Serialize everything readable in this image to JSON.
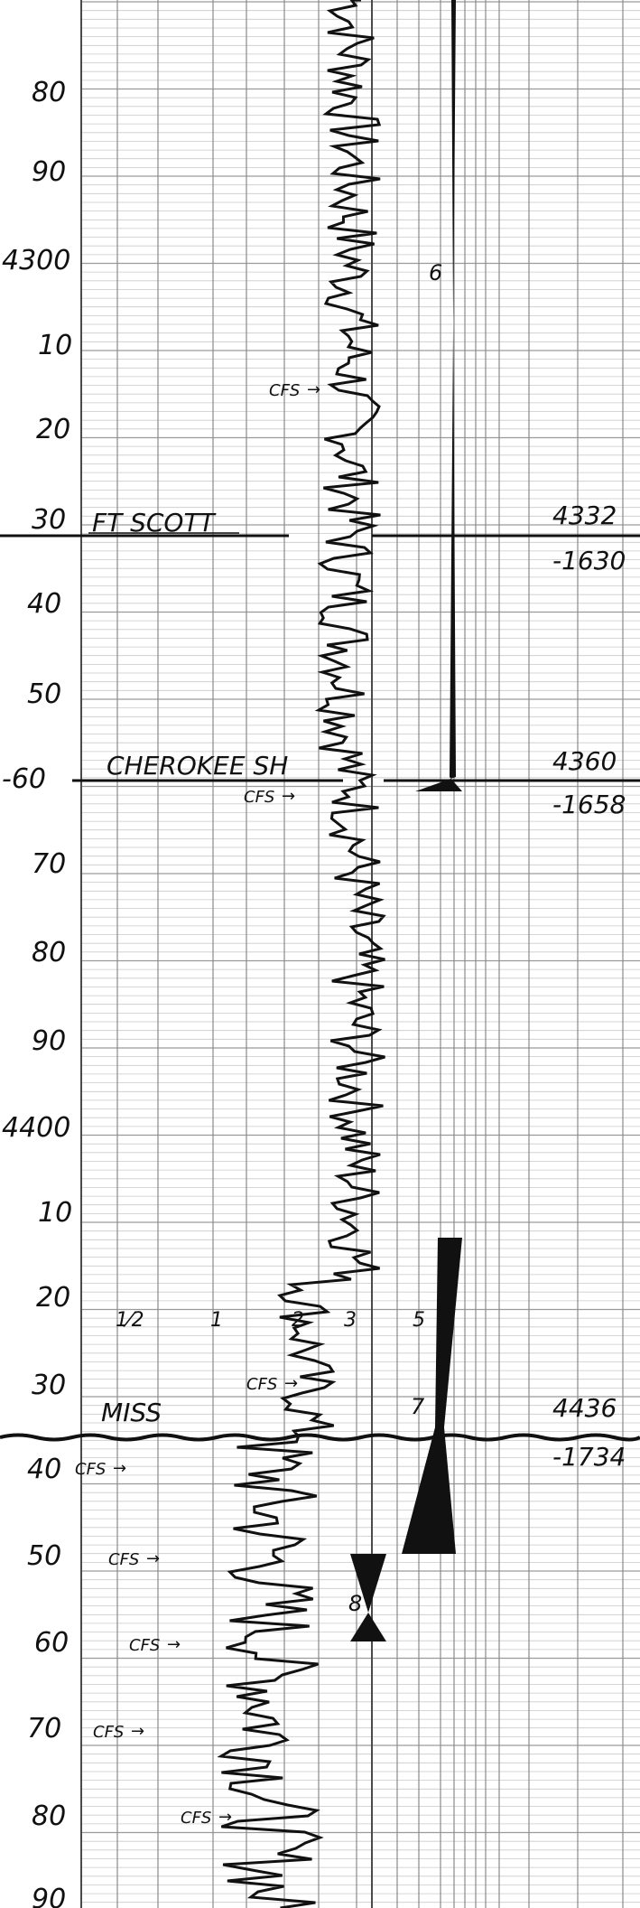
{
  "depth_labels": [
    "80",
    "90",
    "4300",
    "10",
    "20",
    "30",
    "40",
    "50",
    "-60",
    "70",
    "80",
    "90",
    "4400",
    "10",
    "20",
    "30",
    "40",
    "50",
    "60",
    "70",
    "80",
    "90"
  ],
  "formations": [
    {
      "name": "FT SCOTT",
      "top": "4332",
      "subsea": "-1630"
    },
    {
      "name": "CHEROKEE SH",
      "top": "4360",
      "subsea": "-1658"
    },
    {
      "name": "MISS",
      "top": "4436",
      "subsea": "-1734"
    }
  ],
  "scale_labels": [
    "1⁄2",
    "1",
    "2",
    "3",
    "5"
  ],
  "zone_numbers": [
    "6",
    "7",
    "8"
  ],
  "marker_label": "CFS"
}
